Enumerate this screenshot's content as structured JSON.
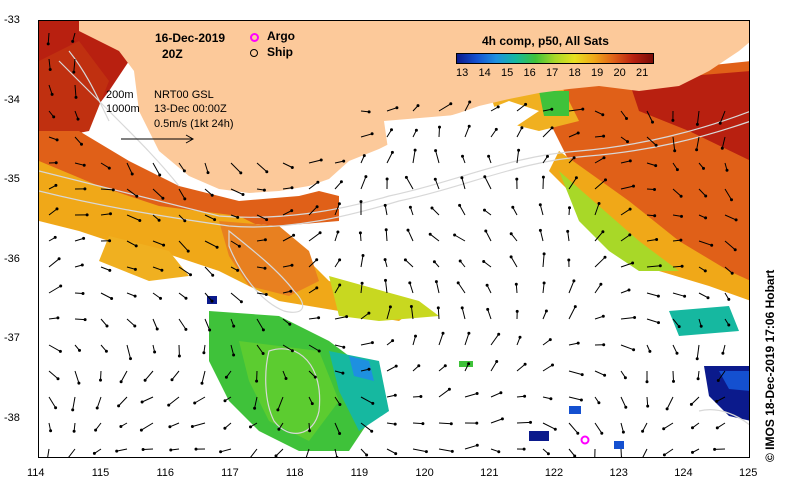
{
  "header": {
    "date": "16-Dec-2019",
    "time": "20Z"
  },
  "legend": {
    "argo_label": "Argo",
    "argo_color": "#ff00ff",
    "ship_label": "Ship",
    "ship_color": "#000000"
  },
  "colorbar": {
    "title": "4h comp, p50, All Sats",
    "ticks": [
      "13",
      "14",
      "15",
      "16",
      "17",
      "18",
      "19",
      "20",
      "21"
    ],
    "colors": [
      "#0b1a8c",
      "#1450d0",
      "#1e90e0",
      "#16b8a0",
      "#3fc23a",
      "#a8d828",
      "#e8e020",
      "#f0a818",
      "#e06018",
      "#b82010",
      "#7a0c08"
    ]
  },
  "info_box": {
    "contour_200": "200m",
    "contour_1000": "1000m",
    "model": "NRT00 GSL",
    "model_date": "13-Dec 00:00Z",
    "scale_label": "0.5m/s (1kt 24h)"
  },
  "axes": {
    "x_ticks": [
      "114",
      "115",
      "116",
      "117",
      "118",
      "119",
      "120",
      "121",
      "122",
      "123",
      "124",
      "125"
    ],
    "y_ticks": [
      "-33",
      "-34",
      "-35",
      "-36",
      "-37",
      "-38"
    ]
  },
  "credit": "© IMOS 18-Dec-2019 17:06 Hobart",
  "colors": {
    "land": "#fcc99a",
    "no_data": "#ffffff"
  }
}
